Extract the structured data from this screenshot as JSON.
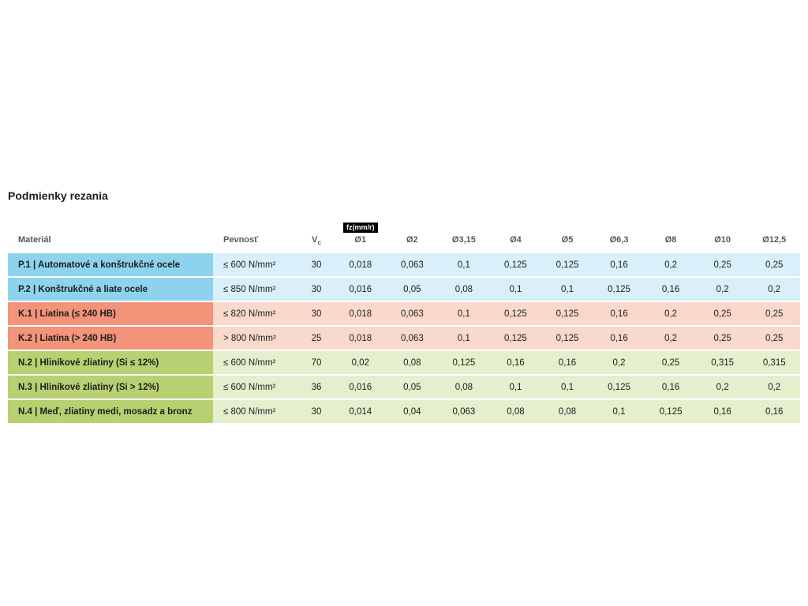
{
  "page": {
    "title": "Podmienky rezania"
  },
  "table": {
    "fz_badge": "fz(mm/r)",
    "header": {
      "material": "Materiál",
      "strength": "Pevnosť",
      "vc_main": "V",
      "vc_sub": "c",
      "diameters": [
        "Ø1",
        "Ø2",
        "Ø3,15",
        "Ø4",
        "Ø5",
        "Ø6,3",
        "Ø8",
        "Ø10",
        "Ø12,5"
      ]
    },
    "groups": {
      "steel": {
        "label_bg": "#8dd3ee",
        "cell_bg": "#d9effa"
      },
      "cast_iron": {
        "label_bg": "#f2937a",
        "cell_bg": "#fad9cc"
      },
      "non_ferrous": {
        "label_bg": "#b7d072",
        "cell_bg": "#e5efcd"
      }
    },
    "rows": [
      {
        "group": "steel",
        "material": "P.1 | Automatové a konštrukčné ocele",
        "strength": "≤ 600 N/mm²",
        "vc": "30",
        "feeds": [
          "0,018",
          "0,063",
          "0,1",
          "0,125",
          "0,125",
          "0,16",
          "0,2",
          "0,25",
          "0,25"
        ]
      },
      {
        "group": "steel",
        "material": "P.2 | Konštrukčné a liate ocele",
        "strength": "≤ 850 N/mm²",
        "vc": "30",
        "feeds": [
          "0,016",
          "0,05",
          "0,08",
          "0,1",
          "0,1",
          "0,125",
          "0,16",
          "0,2",
          "0,2"
        ]
      },
      {
        "group": "cast_iron",
        "material": "K.1 | Liatina (≤ 240 HB)",
        "strength": "≤ 820 N/mm²",
        "vc": "30",
        "feeds": [
          "0,018",
          "0,063",
          "0,1",
          "0,125",
          "0,125",
          "0,16",
          "0,2",
          "0,25",
          "0,25"
        ]
      },
      {
        "group": "cast_iron",
        "material": "K.2 | Liatina (> 240 HB)",
        "strength": "> 800 N/mm²",
        "vc": "25",
        "feeds": [
          "0,018",
          "0,063",
          "0,1",
          "0,125",
          "0,125",
          "0,16",
          "0,2",
          "0,25",
          "0,25"
        ]
      },
      {
        "group": "non_ferrous",
        "material": "N.2 | Hliníkové zliatiny (Si ≤ 12%)",
        "strength": "≤ 600 N/mm²",
        "vc": "70",
        "feeds": [
          "0,02",
          "0,08",
          "0,125",
          "0,16",
          "0,16",
          "0,2",
          "0,25",
          "0,315",
          "0,315"
        ]
      },
      {
        "group": "non_ferrous",
        "material": "N.3 | Hliníkové zliatiny (Si > 12%)",
        "strength": "≤ 600 N/mm²",
        "vc": "36",
        "feeds": [
          "0,016",
          "0,05",
          "0,08",
          "0,1",
          "0,1",
          "0,125",
          "0,16",
          "0,2",
          "0,2"
        ]
      },
      {
        "group": "non_ferrous",
        "material": "N.4 | Meď, zliatiny medi, mosadz a bronz",
        "strength": "≤ 800 N/mm²",
        "vc": "30",
        "feeds": [
          "0,014",
          "0,04",
          "0,063",
          "0,08",
          "0,08",
          "0,1",
          "0,125",
          "0,16",
          "0,16"
        ]
      }
    ]
  }
}
